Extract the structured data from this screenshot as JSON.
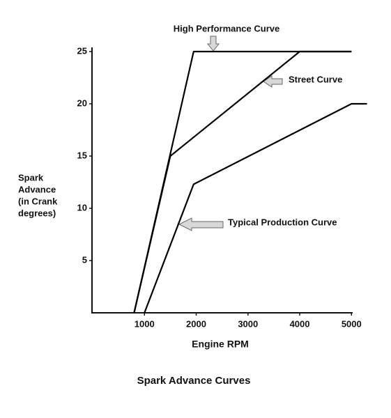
{
  "chart_data": {
    "type": "line",
    "title": "Spark Advance Curves",
    "xlabel": "Engine RPM",
    "ylabel": [
      "Spark",
      "Advance",
      "(in Crank",
      "degrees)"
    ],
    "xlim": [
      0,
      5400
    ],
    "xticks": [
      1000,
      2000,
      3000,
      4000,
      5000
    ],
    "ylim": [
      0,
      25
    ],
    "yticks": [
      5,
      10,
      15,
      20,
      25
    ],
    "series": [
      {
        "name": "High Performance Curve",
        "color": "#000000",
        "x": [
          800,
          1950,
          5000
        ],
        "values": [
          0,
          25,
          25
        ]
      },
      {
        "name": "Street Curve",
        "color": "#000000",
        "x": [
          800,
          1500,
          4000,
          5000
        ],
        "values": [
          0,
          15,
          25,
          25
        ]
      },
      {
        "name": "Typical Production Curve",
        "color": "#000000",
        "x": [
          1000,
          1950,
          5000,
          5300
        ],
        "values": [
          0,
          12.3,
          20,
          20
        ]
      }
    ]
  }
}
